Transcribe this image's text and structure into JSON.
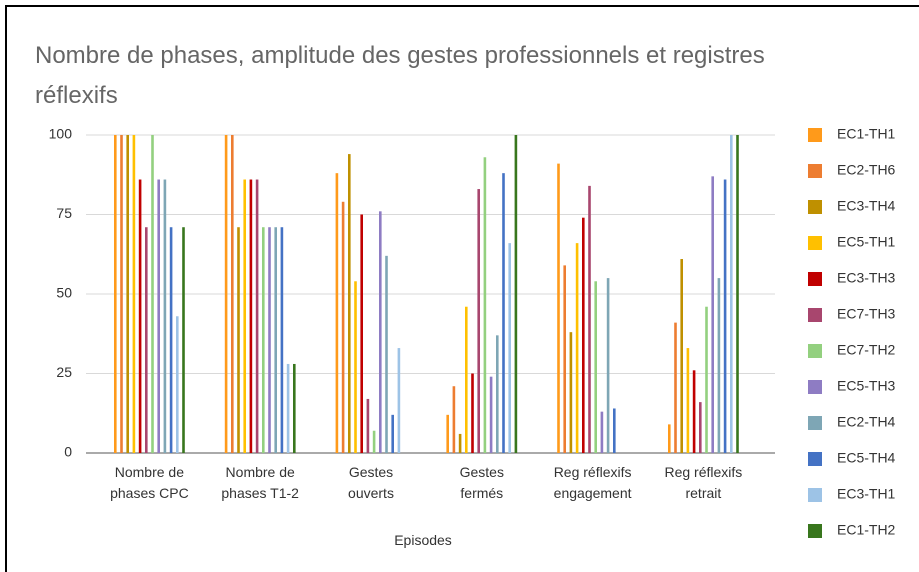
{
  "chart_data": {
    "type": "bar",
    "title": "Nombre de phases, amplitude des gestes professionnels et registres\nréflexifs",
    "xlabel": "Episodes",
    "categories": [
      "Nombre de\nphases CPC",
      "Nombre de\nphases  T1-2",
      "Gestes\nouverts",
      "Gestes\nfermés",
      "Reg réflexifs\nengagement",
      "Reg réflexifs\nretrait"
    ],
    "ylim": [
      0,
      100
    ],
    "yticks": [
      0,
      25,
      50,
      75,
      100
    ],
    "grid": true,
    "legend": "right",
    "series": [
      {
        "name": "EC1-TH1",
        "color": "#ff9a1a",
        "values": [
          100,
          100,
          88,
          12,
          91,
          9
        ]
      },
      {
        "name": "EC2-TH6",
        "color": "#ed7d31",
        "values": [
          100,
          100,
          79,
          21,
          59,
          41
        ]
      },
      {
        "name": "EC3-TH4",
        "color": "#bf9000",
        "values": [
          100,
          71,
          94,
          6,
          38,
          61
        ]
      },
      {
        "name": "EC5-TH1",
        "color": "#ffc000",
        "values": [
          100,
          86,
          54,
          46,
          66,
          33
        ]
      },
      {
        "name": "EC3-TH3",
        "color": "#c00000",
        "values": [
          86,
          86,
          75,
          25,
          74,
          26
        ]
      },
      {
        "name": "EC7-TH3",
        "color": "#a8466e",
        "values": [
          71,
          86,
          17,
          83,
          84,
          16
        ]
      },
      {
        "name": "EC7-TH2",
        "color": "#93d07f",
        "values": [
          100,
          71,
          7,
          93,
          54,
          46
        ]
      },
      {
        "name": "EC5-TH3",
        "color": "#8e7cc3",
        "values": [
          86,
          71,
          76,
          24,
          13,
          87
        ]
      },
      {
        "name": "EC2-TH4",
        "color": "#7ea6b5",
        "values": [
          86,
          71,
          62,
          37,
          55,
          55
        ]
      },
      {
        "name": "EC5-TH4",
        "color": "#4472c4",
        "values": [
          71,
          71,
          12,
          88,
          14,
          86
        ]
      },
      {
        "name": "EC3-TH1",
        "color": "#9dc3e6",
        "values": [
          43,
          28,
          33,
          66,
          0,
          100
        ]
      },
      {
        "name": "EC1-TH2",
        "color": "#38761d",
        "values": [
          71,
          28,
          0,
          100,
          0,
          100
        ]
      }
    ]
  }
}
